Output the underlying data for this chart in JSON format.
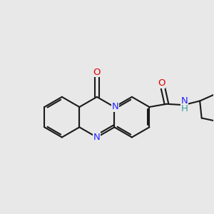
{
  "bg_color": "#e8e8e8",
  "bond_color": "#1a1a1a",
  "N_color": "#2222ff",
  "O_color": "#dd0000",
  "H_color": "#3a9e9e",
  "label_fs": 9.5,
  "bond_lw": 1.5,
  "dbl_off": 0.018,
  "figsize": [
    3.0,
    3.0
  ],
  "dpi": 100,
  "xlim": [
    -0.95,
    1.15
  ],
  "ylim": [
    -0.55,
    0.75
  ]
}
